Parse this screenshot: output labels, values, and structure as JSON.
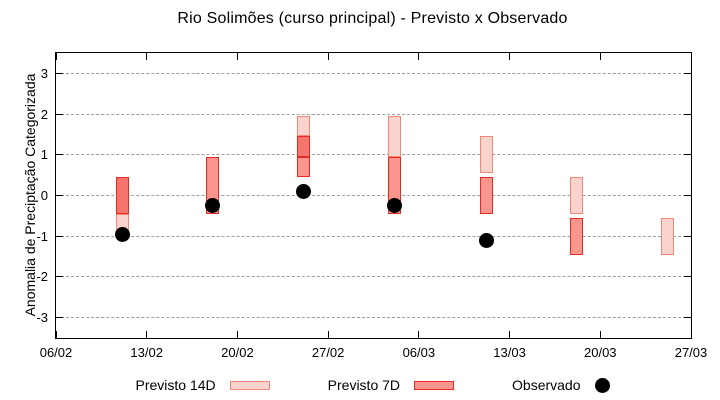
{
  "title": "Rio Solimões (curso principal) - Previsto x Observado",
  "y_axis": {
    "label": "Anomalia de Preciptação Categorizada",
    "ticks": [
      3,
      2,
      1,
      0,
      -1,
      -2,
      -3
    ],
    "range": [
      -3.5,
      3.5
    ]
  },
  "x_axis": {
    "tick_labels": [
      "06/02",
      "13/02",
      "20/02",
      "27/02",
      "06/03",
      "13/03",
      "20/03",
      "27/03"
    ],
    "range_days": [
      0,
      49
    ]
  },
  "legend": {
    "previsto14": {
      "label": "Previsto 14D"
    },
    "previsto7": {
      "label": "Previsto 7D"
    },
    "observado": {
      "label": "Observado"
    }
  },
  "colors": {
    "d14_fill": "#fbd3cd",
    "d14_border": "#f0897a",
    "d7_fill": "#fa968e",
    "d7_border": "#e42a24",
    "overlap_fill": "#f5746c",
    "overlap_border": "#e42a24",
    "obs": "#000000",
    "grid": "#9e9e9e",
    "axis": "#000000"
  },
  "chart_data": {
    "type": "bar",
    "title": "Rio Solimões (curso principal) - Previsto x Observado",
    "xlabel": "",
    "ylabel": "Anomalia de Preciptação Categorizada",
    "ylim": [
      -3.5,
      3.5
    ],
    "grid": "horizontal-dashed-only",
    "legend_position": "below-plot",
    "x_tick_labels": [
      "06/02",
      "13/02",
      "20/02",
      "27/02",
      "06/03",
      "13/03",
      "20/03",
      "27/03"
    ],
    "x_tick_days": [
      0,
      7,
      14,
      21,
      28,
      35,
      42,
      49
    ],
    "series_note": "Previsto 14D and Previsto 7D are category-range bars [low, high]; Observado is a point value; darker red = overlap of the two forecast bars",
    "groups": [
      {
        "date": "11/02",
        "day": 5.1,
        "previsto_14d": [
          -0.95,
          0.45
        ],
        "previsto_7d": [
          -0.45,
          0.45
        ],
        "observado": -0.95
      },
      {
        "date": "18/02",
        "day": 12.1,
        "previsto_14d": null,
        "previsto_7d": [
          -0.45,
          0.95
        ],
        "observado": -0.25
      },
      {
        "date": "25/02",
        "day": 19.1,
        "previsto_14d": [
          0.95,
          1.95
        ],
        "previsto_7d": [
          0.45,
          1.45
        ],
        "observado": 0.1
      },
      {
        "date": "04/03",
        "day": 26.1,
        "previsto_14d": [
          0.95,
          1.95
        ],
        "previsto_7d": [
          -0.45,
          0.95
        ],
        "observado": -0.25
      },
      {
        "date": "11/03",
        "day": 33.2,
        "previsto_14d": [
          0.55,
          1.45
        ],
        "previsto_7d": [
          -0.45,
          0.45
        ],
        "observado": -1.1
      },
      {
        "date": "18/03",
        "day": 40.2,
        "previsto_14d": [
          -0.45,
          0.45
        ],
        "previsto_7d": [
          -1.45,
          -0.55
        ],
        "observado": null
      },
      {
        "date": "25/03",
        "day": 47.2,
        "previsto_14d": [
          -1.45,
          -0.55
        ],
        "previsto_7d": null,
        "observado": null
      }
    ]
  }
}
